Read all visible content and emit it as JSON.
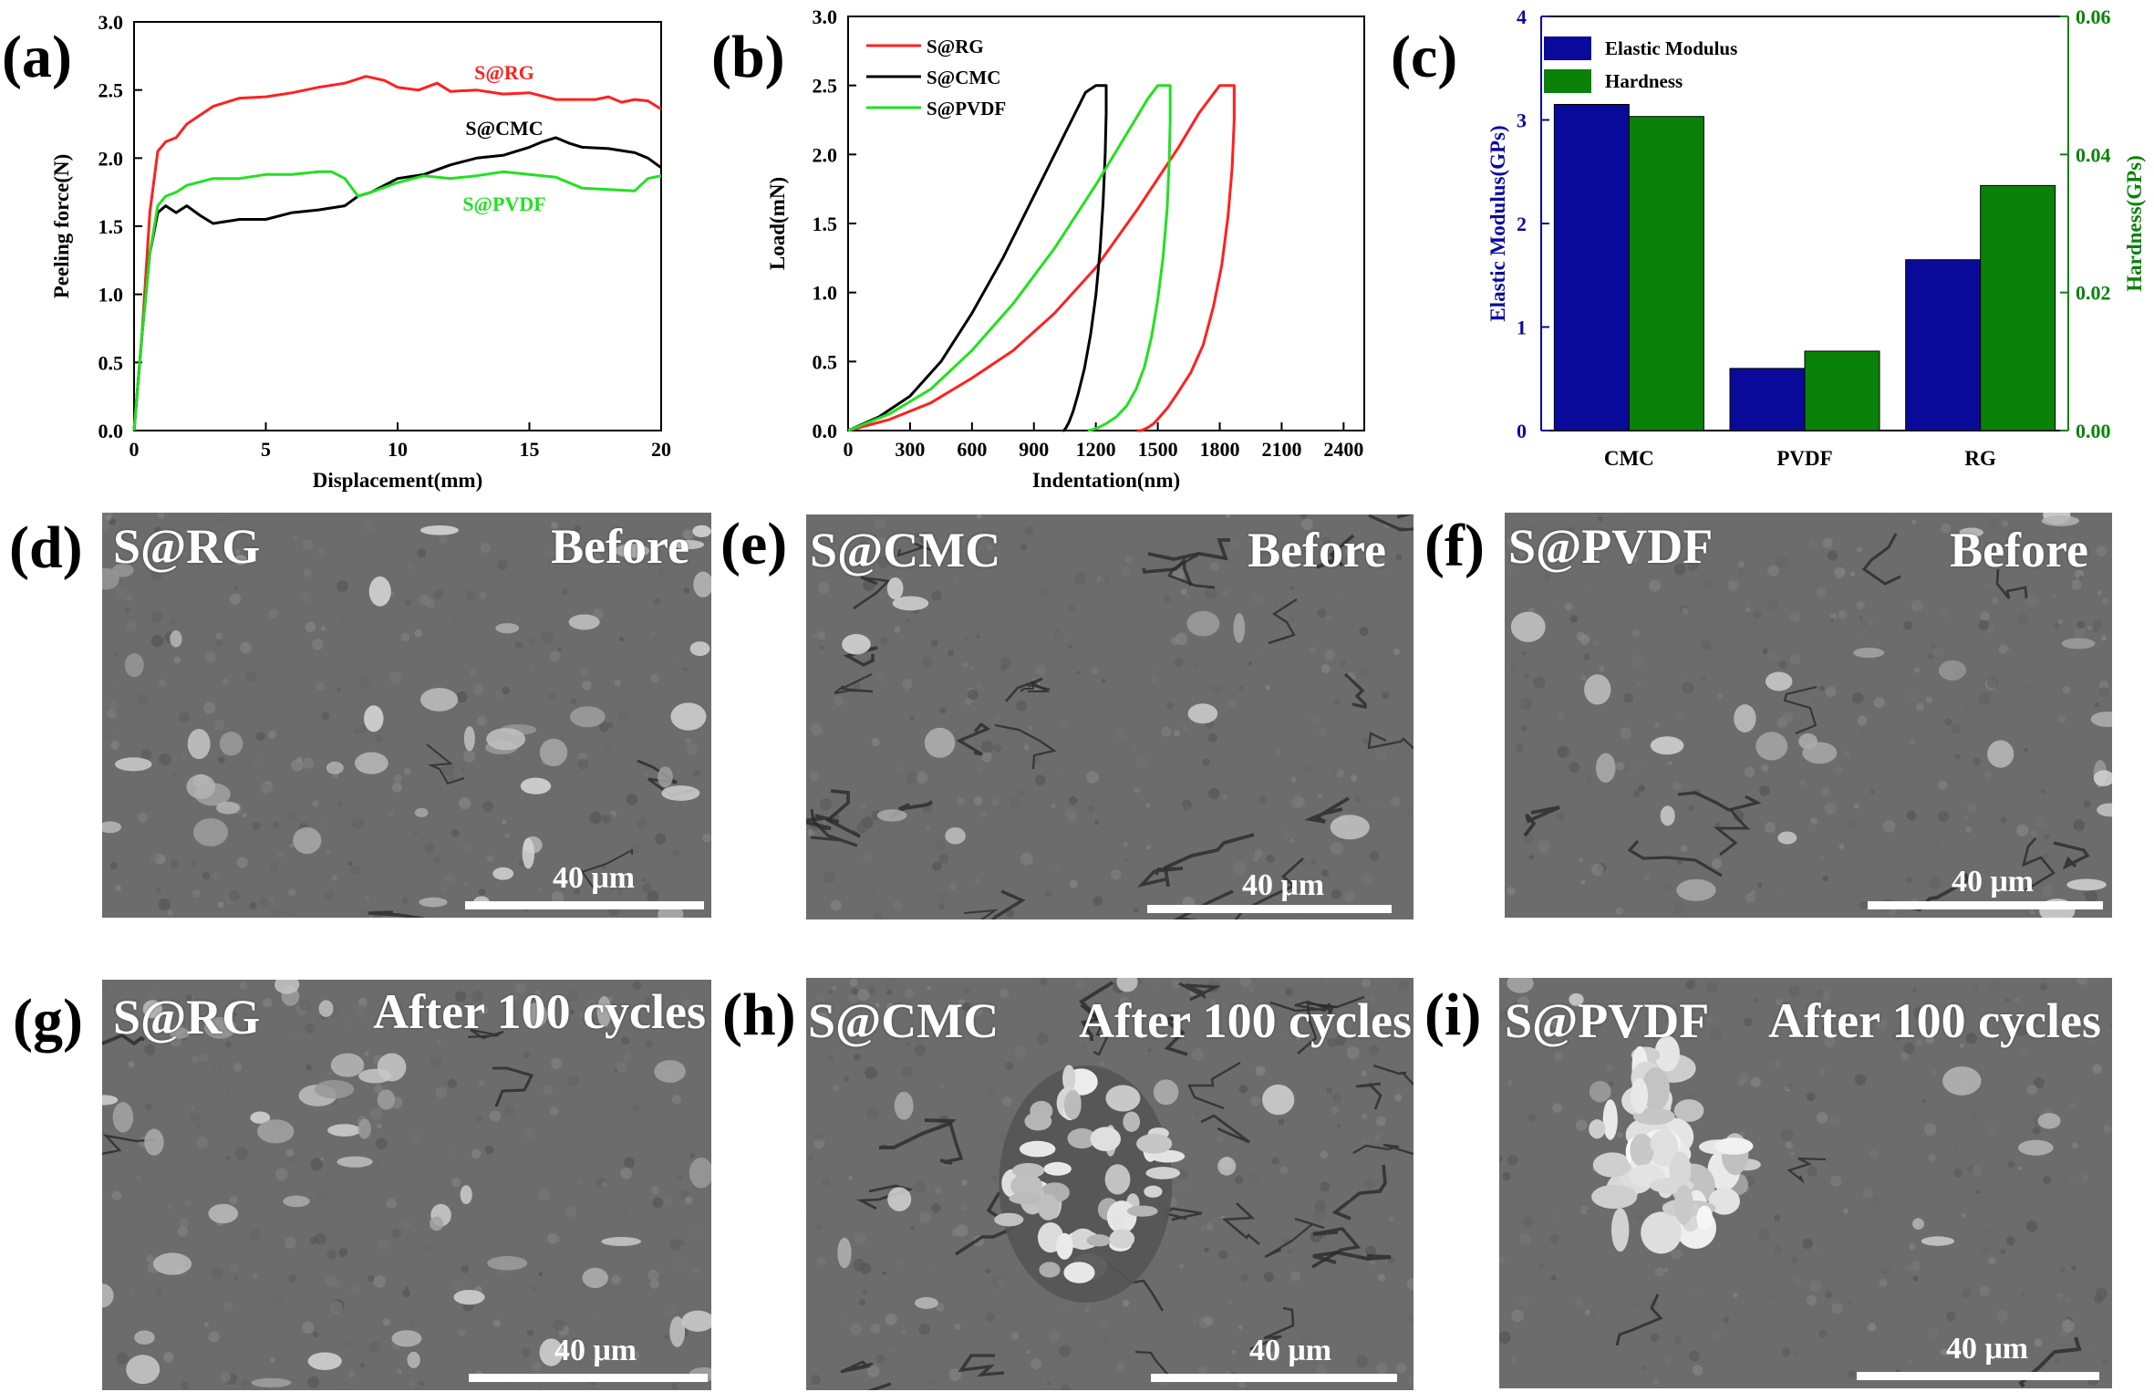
{
  "panel_letters": [
    "(a)",
    "(b)",
    "(c)",
    "(d)",
    "(e)",
    "(f)",
    "(g)",
    "(h)",
    "(i)"
  ],
  "colors": {
    "red": "#ff2020",
    "black": "#000000",
    "green": "#22e022",
    "navy": "#0a0a9a",
    "dark_green": "#0a820a"
  },
  "chart_data": [
    {
      "type": "line",
      "panel": "(a)",
      "xlabel": "Displacement(mm)",
      "ylabel": "Peeling force(N)",
      "xlim": [
        0,
        20
      ],
      "ylim": [
        0,
        3.0
      ],
      "xticks": [
        "0",
        "5",
        "10",
        "15",
        "20"
      ],
      "yticks": [
        "0.0",
        "0.5",
        "1.0",
        "1.5",
        "2.0",
        "2.5",
        "3.0"
      ],
      "series": [
        {
          "name": "S@RG",
          "color": "#ff2020",
          "x": [
            0,
            0.3,
            0.6,
            0.9,
            1.2,
            1.6,
            2,
            3,
            4,
            5,
            6,
            7,
            8,
            8.8,
            9.5,
            10,
            10.8,
            11.5,
            12,
            13,
            14,
            15,
            16,
            17,
            17.5,
            18,
            18.5,
            19,
            19.5,
            20
          ],
          "y": [
            0,
            0.7,
            1.6,
            2.05,
            2.12,
            2.15,
            2.25,
            2.38,
            2.44,
            2.45,
            2.48,
            2.52,
            2.55,
            2.6,
            2.57,
            2.52,
            2.5,
            2.55,
            2.49,
            2.5,
            2.47,
            2.48,
            2.43,
            2.43,
            2.43,
            2.45,
            2.41,
            2.43,
            2.42,
            2.36
          ]
        },
        {
          "name": "S@CMC",
          "color": "#000000",
          "x": [
            0,
            0.3,
            0.6,
            0.9,
            1.2,
            1.6,
            2,
            2.5,
            3,
            4,
            5,
            6,
            7,
            8,
            8.5,
            9,
            10,
            11,
            12,
            13,
            14,
            15,
            15.5,
            16,
            16.5,
            17,
            18,
            19,
            19.5,
            20
          ],
          "y": [
            0,
            0.7,
            1.3,
            1.6,
            1.65,
            1.6,
            1.65,
            1.58,
            1.52,
            1.55,
            1.55,
            1.6,
            1.62,
            1.65,
            1.72,
            1.75,
            1.85,
            1.88,
            1.95,
            2.0,
            2.02,
            2.08,
            2.12,
            2.15,
            2.11,
            2.08,
            2.07,
            2.04,
            2.0,
            1.93
          ]
        },
        {
          "name": "S@PVDF",
          "color": "#22e022",
          "x": [
            0,
            0.3,
            0.6,
            0.9,
            1.2,
            1.6,
            2,
            3,
            4,
            5,
            6,
            7,
            7.5,
            8,
            8.5,
            9,
            10,
            11,
            12,
            13,
            14,
            15,
            16,
            17,
            18,
            19,
            19.5,
            20
          ],
          "y": [
            0,
            0.7,
            1.3,
            1.65,
            1.72,
            1.75,
            1.8,
            1.85,
            1.85,
            1.88,
            1.88,
            1.9,
            1.9,
            1.85,
            1.72,
            1.75,
            1.82,
            1.87,
            1.85,
            1.87,
            1.9,
            1.88,
            1.86,
            1.78,
            1.77,
            1.76,
            1.85,
            1.87
          ]
        }
      ],
      "annotations": [
        "S@RG",
        "S@CMC",
        "S@PVDF"
      ]
    },
    {
      "type": "line",
      "panel": "(b)",
      "xlabel": "Indentation(nm)",
      "ylabel": "Load(mN)",
      "xlim": [
        0,
        2500
      ],
      "ylim": [
        0,
        3.0
      ],
      "xticks": [
        "0",
        "300",
        "600",
        "900",
        "1200",
        "1500",
        "1800",
        "2100",
        "2400"
      ],
      "yticks": [
        "0.0",
        "0.5",
        "1.0",
        "1.5",
        "2.0",
        "2.5",
        "3.0"
      ],
      "legend": "top-left",
      "series": [
        {
          "name": "S@RG",
          "color": "#ff2020",
          "x": [
            0,
            200,
            400,
            600,
            800,
            1000,
            1200,
            1400,
            1600,
            1700,
            1800,
            1850,
            1870,
            1870,
            1860,
            1840,
            1810,
            1770,
            1720,
            1660,
            1600,
            1550,
            1510,
            1480,
            1450,
            1420,
            1400
          ],
          "y": [
            0,
            0.08,
            0.2,
            0.38,
            0.58,
            0.85,
            1.18,
            1.6,
            2.05,
            2.3,
            2.5,
            2.5,
            2.5,
            2.25,
            1.9,
            1.55,
            1.2,
            0.9,
            0.62,
            0.42,
            0.28,
            0.17,
            0.1,
            0.05,
            0.02,
            0,
            0
          ]
        },
        {
          "name": "S@CMC",
          "color": "#000000",
          "x": [
            0,
            150,
            300,
            450,
            600,
            750,
            900,
            1050,
            1150,
            1200,
            1250,
            1250,
            1245,
            1235,
            1220,
            1200,
            1175,
            1145,
            1115,
            1090,
            1070,
            1055,
            1045,
            1040
          ],
          "y": [
            0,
            0.1,
            0.25,
            0.5,
            0.85,
            1.25,
            1.7,
            2.15,
            2.45,
            2.5,
            2.5,
            2.3,
            2.0,
            1.65,
            1.3,
            0.98,
            0.7,
            0.45,
            0.27,
            0.14,
            0.06,
            0.02,
            0,
            0
          ]
        },
        {
          "name": "S@PVDF",
          "color": "#22e022",
          "x": [
            0,
            200,
            400,
            600,
            800,
            1000,
            1200,
            1350,
            1450,
            1500,
            1560,
            1560,
            1555,
            1545,
            1525,
            1500,
            1470,
            1435,
            1395,
            1350,
            1300,
            1250,
            1210,
            1180,
            1160
          ],
          "y": [
            0,
            0.12,
            0.3,
            0.58,
            0.92,
            1.32,
            1.78,
            2.15,
            2.4,
            2.5,
            2.5,
            2.25,
            1.95,
            1.6,
            1.25,
            0.95,
            0.68,
            0.46,
            0.3,
            0.18,
            0.1,
            0.05,
            0.02,
            0.005,
            0
          ]
        }
      ]
    },
    {
      "type": "bar",
      "panel": "(c)",
      "categories": [
        "CMC",
        "PVDF",
        "RG"
      ],
      "ylabel": "Elastic Modulus(GPs)",
      "y2label": "Hardness(GPs)",
      "ylim": [
        0,
        4
      ],
      "y2lim": [
        0,
        0.06
      ],
      "yticks": [
        "0",
        "1",
        "2",
        "3",
        "4"
      ],
      "y2ticks": [
        "0.00",
        "0.02",
        "0.04",
        "0.06"
      ],
      "legend": "top-left",
      "series": [
        {
          "name": "Elastic Modulus",
          "axis": "left",
          "color": "#0a0a9a",
          "values": [
            3.15,
            0.6,
            1.65
          ]
        },
        {
          "name": "Hardness",
          "axis": "right",
          "color": "#0a820a",
          "values": [
            0.0455,
            0.0115,
            0.0355
          ]
        }
      ]
    }
  ],
  "sem_panels": [
    {
      "letter": "(d)",
      "sample": "S@RG",
      "state": "Before",
      "scale": "40 μm"
    },
    {
      "letter": "(e)",
      "sample": "S@CMC",
      "state": "Before",
      "scale": "40 μm"
    },
    {
      "letter": "(f)",
      "sample": "S@PVDF",
      "state": "Before",
      "scale": "40 μm"
    },
    {
      "letter": "(g)",
      "sample": "S@RG",
      "state": "After 100 cycles",
      "scale": "40 μm"
    },
    {
      "letter": "(h)",
      "sample": "S@CMC",
      "state": "After 100 cycles",
      "scale": "40 μm"
    },
    {
      "letter": "(i)",
      "sample": "S@PVDF",
      "state": "After 100 cycles",
      "scale": "40 μm"
    }
  ]
}
